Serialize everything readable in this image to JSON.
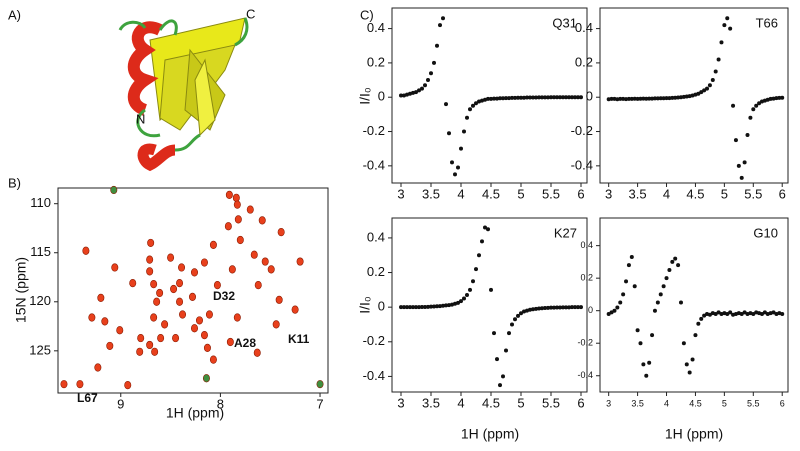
{
  "panel_labels": [
    "A)",
    "B)",
    "C)"
  ],
  "structure_labels": [
    "C",
    "N"
  ],
  "chart_data": [
    {
      "type": "scatter",
      "x_label": "1H (ppm)",
      "y_label": "15N (ppm)",
      "xlim": [
        9.63,
        6.92
      ],
      "ylim": [
        108.4,
        129.3
      ],
      "xticks": [
        9,
        8,
        7
      ],
      "yticks": [
        110,
        115,
        120,
        125
      ],
      "annotations": [
        "D32",
        "A28",
        "K11",
        "L67"
      ],
      "series": [
        {
          "color": "#e8401c",
          "x": [
            7.91,
            7.84,
            7.83,
            7.7,
            7.82,
            7.58,
            7.92,
            7.39,
            8.07,
            7.8,
            8.7,
            9.35,
            8.71,
            8.5,
            7.66,
            7.55,
            8.16,
            9.06,
            8.71,
            8.39,
            8.26,
            7.88,
            7.49,
            7.2,
            8.88,
            8.67,
            8.41,
            8.61,
            8.47,
            8.03,
            7.62,
            9.2,
            8.64,
            8.41,
            8.28,
            7.41,
            9.29,
            9.16,
            8.67,
            8.56,
            8.38,
            8.21,
            8.11,
            7.83,
            7.25,
            9.01,
            8.8,
            8.71,
            8.6,
            8.45,
            8.26,
            8.16,
            7.9,
            7.44,
            8.81,
            8.66,
            8.13,
            7.63,
            9.11,
            9.57,
            9.41,
            8.93,
            8.07,
            9.23
          ],
          "values": [
            109.1,
            109.4,
            110.1,
            110.6,
            111.6,
            111.7,
            112.3,
            112.9,
            114.2,
            113.7,
            114.0,
            114.8,
            115.7,
            115.5,
            115.2,
            115.9,
            116.0,
            116.5,
            116.9,
            116.5,
            117.0,
            116.7,
            116.7,
            115.9,
            118.1,
            118.2,
            118.1,
            119.1,
            118.7,
            118.3,
            118.3,
            119.6,
            120.0,
            120.0,
            119.5,
            119.8,
            121.6,
            122.0,
            121.6,
            122.3,
            121.3,
            121.9,
            121.3,
            121.6,
            120.8,
            122.9,
            123.7,
            124.4,
            123.7,
            123.7,
            122.7,
            123.4,
            124.1,
            122.3,
            125.1,
            125.1,
            124.7,
            125.2,
            124.5,
            128.4,
            128.4,
            128.5,
            125.9,
            126.7
          ]
        },
        {
          "color": "#3f8f3f",
          "x": [
            9.07,
            8.14,
            7.0
          ],
          "values": [
            108.6,
            127.8,
            128.4
          ]
        }
      ]
    },
    {
      "type": "scatter",
      "title": "Q31",
      "y_label": "I/I₀",
      "color": "#111",
      "xlim": [
        2.85,
        6.1
      ],
      "ylim": [
        -0.5,
        0.52
      ],
      "xticks": [
        3,
        3.5,
        4,
        4.5,
        5,
        5.5,
        6
      ],
      "yticks": [
        -0.4,
        -0.2,
        0,
        0.2,
        0.4
      ],
      "x": [
        3,
        3.05,
        3.1,
        3.15,
        3.2,
        3.25,
        3.3,
        3.35,
        3.4,
        3.45,
        3.5,
        3.55,
        3.6,
        3.65,
        3.7,
        3.75,
        3.8,
        3.85,
        3.9,
        3.95,
        4,
        4.05,
        4.1,
        4.15,
        4.2,
        4.25,
        4.3,
        4.35,
        4.4,
        4.45,
        4.5,
        4.55,
        4.6,
        4.65,
        4.7,
        4.75,
        4.8,
        4.85,
        4.9,
        4.95,
        5,
        5.05,
        5.1,
        5.15,
        5.2,
        5.25,
        5.3,
        5.35,
        5.4,
        5.45,
        5.5,
        5.55,
        5.6,
        5.65,
        5.7,
        5.75,
        5.8,
        5.85,
        5.9,
        5.95,
        6
      ],
      "values": [
        0.01,
        0.01,
        0.015,
        0.02,
        0.025,
        0.03,
        0.04,
        0.05,
        0.07,
        0.1,
        0.14,
        0.2,
        0.3,
        0.42,
        0.46,
        -0.04,
        -0.21,
        -0.38,
        -0.45,
        -0.41,
        -0.3,
        -0.2,
        -0.12,
        -0.07,
        -0.05,
        -0.035,
        -0.025,
        -0.02,
        -0.015,
        -0.01,
        -0.01,
        -0.008,
        -0.008,
        -0.006,
        -0.006,
        -0.005,
        -0.005,
        -0.004,
        -0.004,
        -0.003,
        -0.003,
        -0.003,
        -0.002,
        -0.002,
        -0.002,
        -0.002,
        -0.001,
        -0.001,
        -0.001,
        -0.001,
        0,
        0,
        0,
        0,
        0,
        0,
        0,
        0,
        0,
        0,
        0
      ]
    },
    {
      "type": "scatter",
      "title": "T66",
      "color": "#111",
      "xlim": [
        2.85,
        6.1
      ],
      "ylim": [
        -0.5,
        0.52
      ],
      "xticks": [
        3,
        3.5,
        4,
        4.5,
        5,
        5.5,
        6
      ],
      "yticks": [
        -0.4,
        -0.2,
        0,
        0.2,
        0.4
      ],
      "x": [
        3,
        3.05,
        3.1,
        3.15,
        3.2,
        3.25,
        3.3,
        3.35,
        3.4,
        3.45,
        3.5,
        3.55,
        3.6,
        3.65,
        3.7,
        3.75,
        3.8,
        3.85,
        3.9,
        3.95,
        4,
        4.05,
        4.1,
        4.15,
        4.2,
        4.25,
        4.3,
        4.35,
        4.4,
        4.45,
        4.5,
        4.55,
        4.6,
        4.65,
        4.7,
        4.75,
        4.8,
        4.85,
        4.9,
        4.95,
        5,
        5.05,
        5.1,
        5.15,
        5.2,
        5.25,
        5.3,
        5.35,
        5.4,
        5.45,
        5.5,
        5.55,
        5.6,
        5.65,
        5.7,
        5.75,
        5.8,
        5.85,
        5.9,
        5.95,
        6
      ],
      "values": [
        -0.012,
        -0.01,
        -0.01,
        -0.012,
        -0.01,
        -0.01,
        -0.011,
        -0.01,
        -0.01,
        -0.009,
        -0.01,
        -0.009,
        -0.008,
        -0.009,
        -0.008,
        -0.008,
        -0.007,
        -0.007,
        -0.006,
        -0.006,
        -0.005,
        -0.005,
        -0.004,
        -0.003,
        -0.002,
        0,
        0.002,
        0.004,
        0.006,
        0.01,
        0.015,
        0.02,
        0.03,
        0.04,
        0.05,
        0.07,
        0.1,
        0.15,
        0.22,
        0.32,
        0.42,
        0.46,
        0.4,
        -0.05,
        -0.25,
        -0.4,
        -0.47,
        -0.38,
        -0.22,
        -0.12,
        -0.07,
        -0.05,
        -0.035,
        -0.025,
        -0.02,
        -0.015,
        -0.01,
        -0.008,
        -0.005,
        -0.004,
        -0.003
      ]
    },
    {
      "type": "scatter",
      "title": "K27",
      "x_label": "1H (ppm)",
      "y_label": "I/I₀",
      "color": "#111",
      "xlim": [
        2.85,
        6.1
      ],
      "ylim": [
        -0.49,
        0.515
      ],
      "xticks": [
        3,
        3.5,
        4,
        4.5,
        5,
        5.5,
        6
      ],
      "yticks": [
        -0.4,
        -0.2,
        0,
        0.2,
        0.4
      ],
      "x": [
        3,
        3.05,
        3.1,
        3.15,
        3.2,
        3.25,
        3.3,
        3.35,
        3.4,
        3.45,
        3.5,
        3.55,
        3.6,
        3.65,
        3.7,
        3.75,
        3.8,
        3.85,
        3.9,
        3.95,
        4,
        4.05,
        4.1,
        4.15,
        4.2,
        4.25,
        4.3,
        4.35,
        4.4,
        4.45,
        4.5,
        4.55,
        4.6,
        4.65,
        4.7,
        4.75,
        4.8,
        4.85,
        4.9,
        4.95,
        5,
        5.05,
        5.1,
        5.15,
        5.2,
        5.25,
        5.3,
        5.35,
        5.4,
        5.45,
        5.5,
        5.55,
        5.6,
        5.65,
        5.7,
        5.75,
        5.8,
        5.85,
        5.9,
        5.95,
        6
      ],
      "values": [
        0,
        0,
        0,
        0,
        0,
        0,
        0,
        0.001,
        0.001,
        0.002,
        0.003,
        0.004,
        0.005,
        0.006,
        0.008,
        0.01,
        0.012,
        0.015,
        0.02,
        0.025,
        0.035,
        0.05,
        0.07,
        0.1,
        0.15,
        0.22,
        0.3,
        0.38,
        0.46,
        0.45,
        0.1,
        -0.15,
        -0.3,
        -0.45,
        -0.4,
        -0.25,
        -0.15,
        -0.1,
        -0.07,
        -0.05,
        -0.035,
        -0.025,
        -0.02,
        -0.015,
        -0.012,
        -0.01,
        -0.008,
        -0.006,
        -0.005,
        -0.004,
        -0.003,
        -0.003,
        -0.002,
        -0.002,
        -0.001,
        -0.001,
        -0.001,
        0,
        0,
        0,
        0
      ]
    },
    {
      "type": "scatter",
      "title": "G10",
      "x_label": "1H (ppm)",
      "color": "#111",
      "xlim": [
        2.85,
        6.1
      ],
      "ylim": [
        -0.5,
        0.57
      ],
      "xticks": [
        3,
        3.5,
        4,
        4.5,
        5,
        5.5,
        6
      ],
      "yticks": [
        -0.4,
        -0.2,
        0,
        0.2,
        0.4
      ],
      "x": [
        3,
        3.05,
        3.1,
        3.15,
        3.2,
        3.25,
        3.3,
        3.35,
        3.4,
        3.45,
        3.5,
        3.55,
        3.6,
        3.65,
        3.7,
        3.75,
        3.8,
        3.85,
        3.9,
        3.95,
        4,
        4.05,
        4.1,
        4.15,
        4.2,
        4.25,
        4.3,
        4.35,
        4.4,
        4.45,
        4.5,
        4.55,
        4.6,
        4.65,
        4.7,
        4.75,
        4.8,
        4.85,
        4.9,
        4.95,
        5,
        5.05,
        5.1,
        5.15,
        5.2,
        5.25,
        5.3,
        5.35,
        5.4,
        5.45,
        5.5,
        5.55,
        5.6,
        5.65,
        5.7,
        5.75,
        5.8,
        5.85,
        5.9,
        5.95,
        6
      ],
      "values": [
        -0.02,
        -0.01,
        0,
        0.02,
        0.05,
        0.1,
        0.18,
        0.28,
        0.33,
        0.15,
        -0.12,
        -0.2,
        -0.33,
        -0.4,
        -0.32,
        -0.15,
        0,
        0.05,
        0.1,
        0.15,
        0.2,
        0.25,
        0.3,
        0.32,
        0.28,
        0.05,
        -0.2,
        -0.33,
        -0.38,
        -0.3,
        -0.15,
        -0.08,
        -0.05,
        -0.03,
        -0.02,
        -0.025,
        -0.015,
        -0.02,
        -0.01,
        -0.02,
        -0.015,
        -0.02,
        -0.01,
        -0.025,
        -0.02,
        -0.015,
        -0.02,
        -0.01,
        -0.02,
        -0.015,
        -0.02,
        -0.01,
        -0.015,
        -0.02,
        -0.01,
        -0.02,
        -0.015,
        -0.01,
        -0.02,
        -0.015,
        -0.02
      ]
    }
  ]
}
